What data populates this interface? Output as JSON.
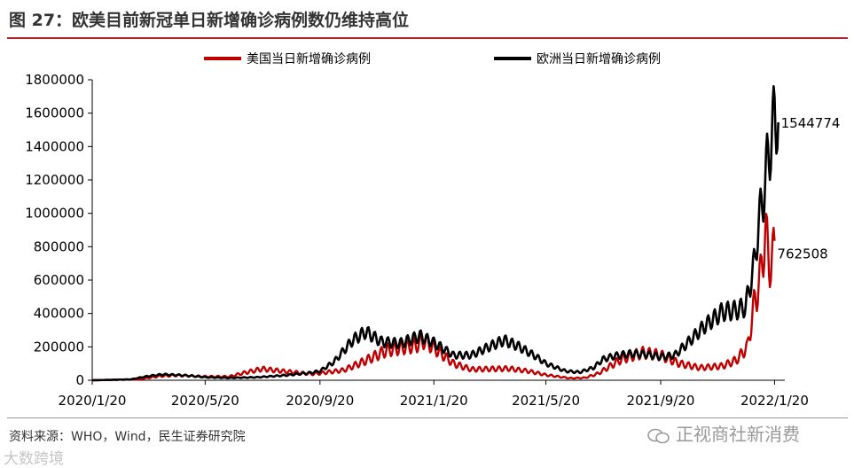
{
  "figure_title": "图 27：欧美目前新冠单日新增确诊病例数仍维持高位",
  "source_text": "资料来源：WHO，Wind，民生证券研究院",
  "watermark_right": "正视商社新消费",
  "watermark_left": "大数跨境",
  "colors": {
    "us": "#c00000",
    "eu": "#000000",
    "title_rule": "#b0202a"
  },
  "chart_data": {
    "type": "line",
    "x_ticks": [
      "2020/1/20",
      "2020/5/20",
      "2020/9/20",
      "2021/1/20",
      "2021/5/20",
      "2021/9/20",
      "2022/1/20"
    ],
    "x_range": [
      "2020-01-20",
      "2022-01-31"
    ],
    "ylim": [
      0,
      1800000
    ],
    "y_ticks": [
      "0",
      "200000",
      "400000",
      "600000",
      "800000",
      "1000000",
      "1200000",
      "1400000",
      "1600000",
      "1800000"
    ],
    "grid": false,
    "legend": "top",
    "series": [
      {
        "name": "美国当日新增确诊病例",
        "end_label": "762508",
        "points": [
          [
            "2020-01-20",
            0
          ],
          [
            "2020-03-10",
            5000
          ],
          [
            "2020-04-01",
            25000
          ],
          [
            "2020-04-20",
            30000
          ],
          [
            "2020-05-20",
            22000
          ],
          [
            "2020-06-15",
            22000
          ],
          [
            "2020-07-01",
            45000
          ],
          [
            "2020-07-20",
            68000
          ],
          [
            "2020-08-10",
            55000
          ],
          [
            "2020-09-10",
            38000
          ],
          [
            "2020-09-20",
            42000
          ],
          [
            "2020-10-15",
            60000
          ],
          [
            "2020-11-05",
            110000
          ],
          [
            "2020-12-01",
            180000
          ],
          [
            "2021-01-01",
            210000
          ],
          [
            "2021-01-10",
            240000
          ],
          [
            "2021-01-20",
            195000
          ],
          [
            "2021-02-10",
            100000
          ],
          [
            "2021-03-01",
            65000
          ],
          [
            "2021-04-10",
            70000
          ],
          [
            "2021-05-01",
            55000
          ],
          [
            "2021-05-20",
            32000
          ],
          [
            "2021-06-15",
            12000
          ],
          [
            "2021-07-01",
            15000
          ],
          [
            "2021-07-15",
            40000
          ],
          [
            "2021-08-10",
            130000
          ],
          [
            "2021-09-01",
            165000
          ],
          [
            "2021-09-20",
            150000
          ],
          [
            "2021-10-10",
            100000
          ],
          [
            "2021-11-01",
            75000
          ],
          [
            "2021-11-25",
            85000
          ],
          [
            "2021-12-10",
            120000
          ],
          [
            "2021-12-22",
            200000
          ],
          [
            "2021-12-30",
            480000
          ],
          [
            "2022-01-05",
            620000
          ],
          [
            "2022-01-10",
            900000
          ],
          [
            "2022-01-14",
            700000
          ],
          [
            "2022-01-20",
            762508
          ]
        ]
      },
      {
        "name": "欧洲当日新增确诊病例",
        "end_label": "1544774",
        "points": [
          [
            "2020-01-20",
            0
          ],
          [
            "2020-03-01",
            5000
          ],
          [
            "2020-03-20",
            25000
          ],
          [
            "2020-04-05",
            35000
          ],
          [
            "2020-05-01",
            28000
          ],
          [
            "2020-05-20",
            18000
          ],
          [
            "2020-06-15",
            14000
          ],
          [
            "2020-07-15",
            18000
          ],
          [
            "2020-08-15",
            30000
          ],
          [
            "2020-09-10",
            45000
          ],
          [
            "2020-09-20",
            55000
          ],
          [
            "2020-10-05",
            110000
          ],
          [
            "2020-10-25",
            240000
          ],
          [
            "2020-11-08",
            290000
          ],
          [
            "2020-11-25",
            230000
          ],
          [
            "2020-12-15",
            220000
          ],
          [
            "2021-01-05",
            265000
          ],
          [
            "2021-01-20",
            225000
          ],
          [
            "2021-02-10",
            150000
          ],
          [
            "2021-03-01",
            150000
          ],
          [
            "2021-03-20",
            200000
          ],
          [
            "2021-04-05",
            240000
          ],
          [
            "2021-04-20",
            205000
          ],
          [
            "2021-05-10",
            140000
          ],
          [
            "2021-05-20",
            100000
          ],
          [
            "2021-06-10",
            55000
          ],
          [
            "2021-06-25",
            48000
          ],
          [
            "2021-07-10",
            75000
          ],
          [
            "2021-07-20",
            125000
          ],
          [
            "2021-08-01",
            145000
          ],
          [
            "2021-08-20",
            160000
          ],
          [
            "2021-09-05",
            155000
          ],
          [
            "2021-09-20",
            140000
          ],
          [
            "2021-10-05",
            150000
          ],
          [
            "2021-10-20",
            230000
          ],
          [
            "2021-11-05",
            320000
          ],
          [
            "2021-11-25",
            410000
          ],
          [
            "2021-12-10",
            420000
          ],
          [
            "2021-12-20",
            440000
          ],
          [
            "2021-12-30",
            720000
          ],
          [
            "2022-01-03",
            950000
          ],
          [
            "2022-01-08",
            1100000
          ],
          [
            "2022-01-12",
            1300000
          ],
          [
            "2022-01-17",
            1450000
          ],
          [
            "2022-01-20",
            1600000
          ],
          [
            "2022-01-24",
            1544774
          ]
        ]
      }
    ]
  }
}
